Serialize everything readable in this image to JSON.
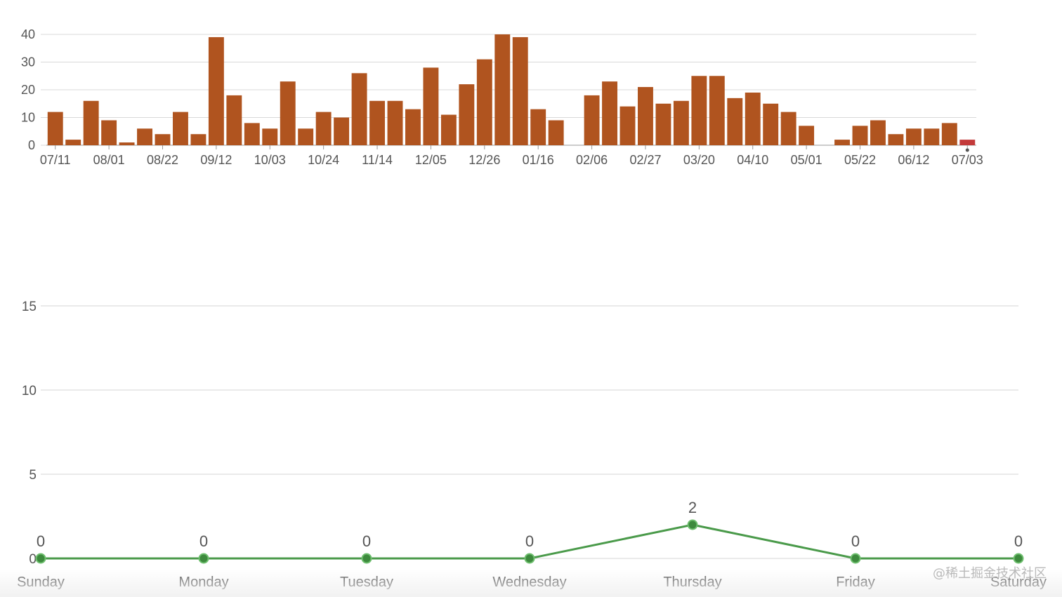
{
  "chart_data": [
    {
      "type": "bar",
      "ylim": [
        0,
        40
      ],
      "yticks": [
        "0",
        "10",
        "20",
        "30",
        "40"
      ],
      "x_tick_labels": [
        "07/11",
        "08/01",
        "08/22",
        "09/12",
        "10/03",
        "10/24",
        "11/14",
        "12/05",
        "12/26",
        "01/16",
        "02/06",
        "02/27",
        "03/20",
        "04/10",
        "05/01",
        "05/22",
        "06/12",
        "07/03"
      ],
      "values": [
        12,
        2,
        16,
        9,
        1,
        6,
        4,
        12,
        4,
        39,
        18,
        8,
        6,
        23,
        6,
        12,
        10,
        26,
        16,
        16,
        13,
        28,
        11,
        22,
        31,
        40,
        39,
        13,
        9,
        0,
        18,
        23,
        14,
        21,
        15,
        16,
        25,
        25,
        17,
        19,
        15,
        12,
        7,
        0,
        2,
        7,
        9,
        4,
        6,
        6,
        8,
        2
      ],
      "bar_color": "#b0541f",
      "highlight_color": "#c33a3a",
      "grid": true
    },
    {
      "type": "line",
      "categories": [
        "Sunday",
        "Monday",
        "Tuesday",
        "Wednesday",
        "Thursday",
        "Friday",
        "Saturday"
      ],
      "values": [
        0,
        0,
        0,
        0,
        2,
        0,
        0
      ],
      "data_labels": [
        "0",
        "0",
        "0",
        "0",
        "2",
        "0",
        "0"
      ],
      "ylim": [
        0,
        15
      ],
      "yticks": [
        "0",
        "5",
        "10",
        "15"
      ],
      "line_color": "#4a9a4a",
      "point_color": "#3d8a3d",
      "grid": true
    }
  ],
  "watermark": "@稀土掘金技术社区"
}
